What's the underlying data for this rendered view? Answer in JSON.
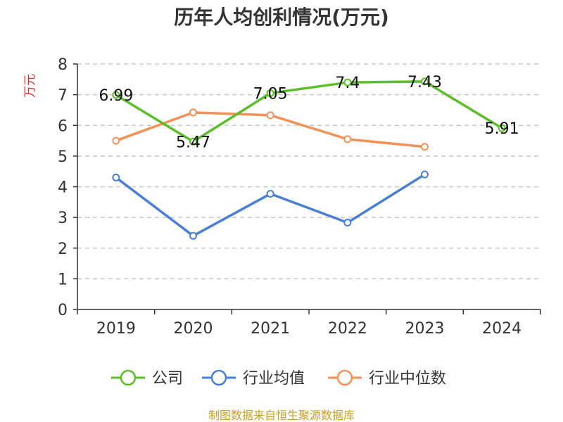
{
  "chart_data": {
    "type": "line",
    "title": "历年人均创利情况(万元)",
    "ylabel": "万元",
    "xlabel": "",
    "categories": [
      "2019",
      "2020",
      "2021",
      "2022",
      "2023",
      "2024"
    ],
    "ylim": [
      0,
      8
    ],
    "yticks": [
      0,
      1,
      2,
      3,
      4,
      5,
      6,
      7,
      8
    ],
    "grid": true,
    "legend_position": "bottom",
    "series": [
      {
        "name": "公司",
        "color": "#5cbf2a",
        "values": [
          6.99,
          5.47,
          7.05,
          7.4,
          7.43,
          5.91
        ],
        "labels": [
          "6.99",
          "5.47",
          "7.05",
          "7.4",
          "7.43",
          "5.91"
        ]
      },
      {
        "name": "行业均值",
        "color": "#4a7fd8",
        "values": [
          4.3,
          2.4,
          3.77,
          2.83,
          4.4,
          null
        ]
      },
      {
        "name": "行业中位数",
        "color": "#f59057",
        "values": [
          5.5,
          6.42,
          6.33,
          5.55,
          5.3,
          null
        ]
      }
    ],
    "source": "制图数据来自恒生聚源数据库"
  }
}
